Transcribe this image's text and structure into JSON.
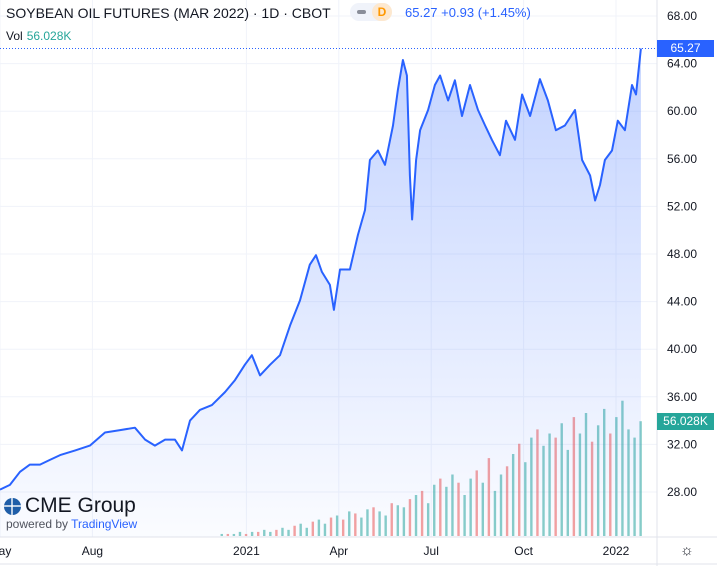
{
  "header": {
    "title": "SOYBEAN OIL FUTURES (MAR 2022) · 1D · CBOT",
    "interval_badge": "D",
    "last": "65.27",
    "change": "+0.93",
    "change_pct": "(+1.45%)",
    "vol_label": "Vol",
    "vol_value": "56.028K"
  },
  "price_tag": "65.27",
  "volume_tag": "56.028K",
  "colors": {
    "line": "#2962ff",
    "up": "#26a69a",
    "down": "#ef5350",
    "tag_price": "#2962ff",
    "tag_vol": "#26a69a"
  },
  "branding": {
    "logo": "CME Group",
    "powered": "powered by",
    "tv": "TradingView"
  },
  "settings_icon": "sun-gear-icon",
  "chart_data": {
    "type": "line",
    "title": "SOYBEAN OIL FUTURES (MAR 2022)",
    "x_unit": "months since May 2020",
    "ylim": [
      24.6,
      69.3
    ],
    "y_ticks": [
      "68.00",
      "64.00",
      "60.00",
      "56.00",
      "52.00",
      "48.00",
      "44.00",
      "40.00",
      "36.00",
      "32.00",
      "28.00"
    ],
    "x_ticks": [
      {
        "m": 0,
        "label": "May"
      },
      {
        "m": 3,
        "label": "Aug"
      },
      {
        "m": 8,
        "label": "2021"
      },
      {
        "m": 11,
        "label": "Apr"
      },
      {
        "m": 14,
        "label": "Jul"
      },
      {
        "m": 17,
        "label": "Oct"
      },
      {
        "m": 20,
        "label": "2022"
      }
    ],
    "price": [
      [
        0,
        28.2
      ],
      [
        0.32,
        28.6
      ],
      [
        0.65,
        29.7
      ],
      [
        0.97,
        30.3
      ],
      [
        1.3,
        30.3
      ],
      [
        1.62,
        30.7
      ],
      [
        1.95,
        31.1
      ],
      [
        2.44,
        31.5
      ],
      [
        2.92,
        31.9
      ],
      [
        3.41,
        33.0
      ],
      [
        3.9,
        33.2
      ],
      [
        4.38,
        33.4
      ],
      [
        4.71,
        32.4
      ],
      [
        5.03,
        31.9
      ],
      [
        5.36,
        32.4
      ],
      [
        5.68,
        32.4
      ],
      [
        5.91,
        31.5
      ],
      [
        6.17,
        34.0
      ],
      [
        6.49,
        34.9
      ],
      [
        6.88,
        35.3
      ],
      [
        7.31,
        36.4
      ],
      [
        7.63,
        37.4
      ],
      [
        7.95,
        38.7
      ],
      [
        8.18,
        39.5
      ],
      [
        8.44,
        37.8
      ],
      [
        8.77,
        38.7
      ],
      [
        9.09,
        39.5
      ],
      [
        9.42,
        42.0
      ],
      [
        9.74,
        44.1
      ],
      [
        10.06,
        47.1
      ],
      [
        10.26,
        47.9
      ],
      [
        10.45,
        46.5
      ],
      [
        10.71,
        45.4
      ],
      [
        10.84,
        43.3
      ],
      [
        11.04,
        46.7
      ],
      [
        11.36,
        46.7
      ],
      [
        11.62,
        49.6
      ],
      [
        11.85,
        51.7
      ],
      [
        12.01,
        55.9
      ],
      [
        12.27,
        56.7
      ],
      [
        12.5,
        55.5
      ],
      [
        12.76,
        58.8
      ],
      [
        12.92,
        61.8
      ],
      [
        13.08,
        64.3
      ],
      [
        13.21,
        63.0
      ],
      [
        13.31,
        54.6
      ],
      [
        13.38,
        50.9
      ],
      [
        13.51,
        55.9
      ],
      [
        13.64,
        58.4
      ],
      [
        13.9,
        60.1
      ],
      [
        14.12,
        62.2
      ],
      [
        14.29,
        63.0
      ],
      [
        14.55,
        60.9
      ],
      [
        14.77,
        62.6
      ],
      [
        15.0,
        59.6
      ],
      [
        15.26,
        62.2
      ],
      [
        15.52,
        60.1
      ],
      [
        15.75,
        58.8
      ],
      [
        15.97,
        57.6
      ],
      [
        16.23,
        56.3
      ],
      [
        16.43,
        59.2
      ],
      [
        16.72,
        57.6
      ],
      [
        16.95,
        61.4
      ],
      [
        17.21,
        59.6
      ],
      [
        17.53,
        62.7
      ],
      [
        17.79,
        60.9
      ],
      [
        18.05,
        58.4
      ],
      [
        18.34,
        58.8
      ],
      [
        18.67,
        60.1
      ],
      [
        18.9,
        55.9
      ],
      [
        19.16,
        54.6
      ],
      [
        19.32,
        52.5
      ],
      [
        19.48,
        53.8
      ],
      [
        19.64,
        55.9
      ],
      [
        19.87,
        56.7
      ],
      [
        20.06,
        59.2
      ],
      [
        20.29,
        58.4
      ],
      [
        20.52,
        62.2
      ],
      [
        20.65,
        61.4
      ],
      [
        20.81,
        65.27
      ]
    ],
    "volume_k": {
      "start_m": 7.2,
      "end_m": 20.8,
      "values": [
        1,
        -1,
        1,
        2,
        -1,
        2,
        -2,
        3,
        2,
        -3,
        4,
        3,
        -5,
        6,
        4,
        -7,
        8,
        6,
        -9,
        10,
        -8,
        12,
        -11,
        9,
        13,
        -14,
        12,
        10,
        -16,
        15,
        14,
        -18,
        20,
        -22,
        16,
        25,
        -28,
        24,
        30,
        -26,
        20,
        28,
        -32,
        26,
        -38,
        22,
        30,
        -34,
        40,
        -45,
        36,
        48,
        -52,
        44,
        50,
        -48,
        55,
        42,
        -58,
        50,
        60,
        -46,
        54,
        62,
        -50,
        58,
        66,
        52,
        48,
        56
      ]
    }
  }
}
